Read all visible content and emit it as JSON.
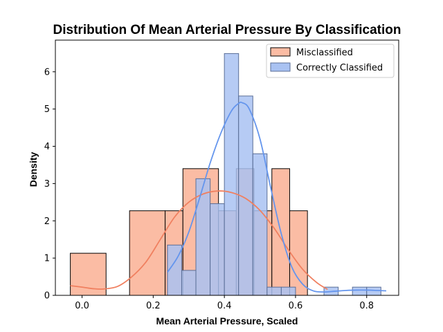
{
  "chart_data": {
    "type": "histogram",
    "title": "Distribution Of Mean Arterial Pressure By Classification",
    "xlabel": "Mean Arterial Pressure, Scaled",
    "ylabel": "Density",
    "xlim": [
      -0.075,
      0.89
    ],
    "ylim": [
      0,
      6.85
    ],
    "xticks": [
      0.0,
      0.2,
      0.4,
      0.6,
      0.8
    ],
    "xtick_labels": [
      "0.0",
      "0.2",
      "0.4",
      "0.6",
      "0.8"
    ],
    "yticks": [
      0,
      1,
      2,
      3,
      4,
      5,
      6
    ],
    "ytick_labels": [
      "0",
      "1",
      "2",
      "3",
      "4",
      "5",
      "6"
    ],
    "grid": false,
    "legend_position": "top-right",
    "series": [
      {
        "name": "Misclassified",
        "color": "#f08060",
        "fill": "#fbbca4",
        "edge": "#000000",
        "bins": [
          {
            "x0": -0.033,
            "x1": 0.0675,
            "height": 1.13
          },
          {
            "x0": 0.1335,
            "x1": 0.2335,
            "height": 2.27
          },
          {
            "x0": 0.2335,
            "x1": 0.2835,
            "height": 2.27
          },
          {
            "x0": 0.2835,
            "x1": 0.3835,
            "height": 3.4
          },
          {
            "x0": 0.3835,
            "x1": 0.4335,
            "height": 2.27
          },
          {
            "x0": 0.4335,
            "x1": 0.4835,
            "height": 3.4
          },
          {
            "x0": 0.4835,
            "x1": 0.5335,
            "height": 2.27
          },
          {
            "x0": 0.5335,
            "x1": 0.5835,
            "height": 3.4
          },
          {
            "x0": 0.5835,
            "x1": 0.6335,
            "height": 2.27
          }
        ],
        "kde": {
          "x": [
            -0.033,
            0.0,
            0.03,
            0.06,
            0.1,
            0.14,
            0.18,
            0.22,
            0.26,
            0.3,
            0.34,
            0.38,
            0.42,
            0.46,
            0.5,
            0.54,
            0.58,
            0.62,
            0.66,
            0.69
          ],
          "y": [
            0.26,
            0.22,
            0.18,
            0.17,
            0.24,
            0.5,
            0.9,
            1.5,
            2.1,
            2.5,
            2.72,
            2.8,
            2.76,
            2.6,
            2.28,
            1.8,
            1.22,
            0.7,
            0.34,
            0.16
          ]
        }
      },
      {
        "name": "Correctly Classified",
        "color": "#6495ed",
        "fill": "#a9c2f2",
        "edge": "#5a6e96",
        "bins": [
          {
            "x0": 0.24,
            "x1": 0.28,
            "height": 1.35
          },
          {
            "x0": 0.28,
            "x1": 0.32,
            "height": 0.67
          },
          {
            "x0": 0.32,
            "x1": 0.36,
            "height": 3.13
          },
          {
            "x0": 0.36,
            "x1": 0.4,
            "height": 2.46
          },
          {
            "x0": 0.4,
            "x1": 0.44,
            "height": 6.49
          },
          {
            "x0": 0.44,
            "x1": 0.48,
            "height": 5.35
          },
          {
            "x0": 0.48,
            "x1": 0.52,
            "height": 3.8
          },
          {
            "x0": 0.52,
            "x1": 0.56,
            "height": 0.22
          },
          {
            "x0": 0.56,
            "x1": 0.6,
            "height": 0.22
          },
          {
            "x0": 0.6,
            "x1": 0.64,
            "height": 0.0
          },
          {
            "x0": 0.64,
            "x1": 0.68,
            "height": 0.0
          },
          {
            "x0": 0.68,
            "x1": 0.72,
            "height": 0.22
          },
          {
            "x0": 0.72,
            "x1": 0.76,
            "height": 0.0
          },
          {
            "x0": 0.76,
            "x1": 0.8,
            "height": 0.22
          },
          {
            "x0": 0.8,
            "x1": 0.84,
            "height": 0.22
          }
        ],
        "kde": {
          "x": [
            0.24,
            0.27,
            0.3,
            0.33,
            0.36,
            0.39,
            0.42,
            0.44,
            0.45,
            0.47,
            0.5,
            0.53,
            0.56,
            0.59,
            0.62,
            0.65,
            0.68,
            0.71,
            0.74,
            0.77,
            0.8,
            0.83,
            0.855
          ],
          "y": [
            0.62,
            1.05,
            1.7,
            2.6,
            3.55,
            4.35,
            4.95,
            5.15,
            5.17,
            5.0,
            4.2,
            2.9,
            1.65,
            0.75,
            0.3,
            0.12,
            0.09,
            0.11,
            0.13,
            0.14,
            0.14,
            0.13,
            0.12
          ]
        }
      }
    ]
  }
}
